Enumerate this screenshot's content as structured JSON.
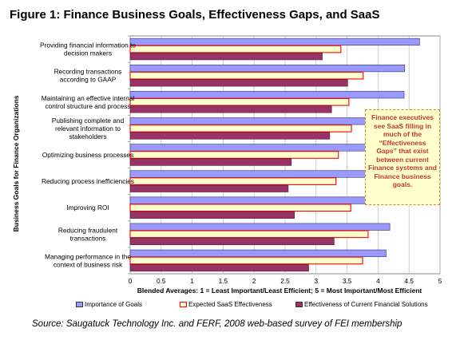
{
  "title": "Figure 1: Finance Business Goals, Effectiveness Gaps, and SaaS",
  "source": "Source: Saugatuck Technology Inc. and FERF, 2008 web-based survey of FEI membership",
  "callout": "Finance executives see SaaS filling in much of the “Effectiveness Gaps” that exist between current Finance systems and Finance business goals.",
  "colors": {
    "importance": "#9999ff",
    "saas": "#ffffcc",
    "saas_border": "#ff0000",
    "current": "#993366",
    "grid": "#bbbbbb"
  },
  "chart_data": {
    "type": "bar",
    "orientation": "horizontal",
    "xlabel": "Blended Averages: 1 = Least  Important/Least Efficient; 5 = Most Important/Most Efficient",
    "ylabel": "Business Goals  for Finance Organizations",
    "xlim": [
      0,
      5
    ],
    "xticks": [
      "0",
      "0.5",
      "1",
      "1.5",
      "2",
      "2.5",
      "3",
      "3.5",
      "4",
      "4.5",
      "5"
    ],
    "grid": true,
    "legend_position": "bottom",
    "categories": [
      [
        "Providing financial information to",
        "decision makers"
      ],
      [
        "Recording transactions",
        "according to GAAP"
      ],
      [
        "Maintaining an effective internal",
        "control structure and process"
      ],
      [
        "Publishing complete and",
        "relevant information to",
        "stakeholders"
      ],
      [
        "Optimizing business processes"
      ],
      [
        "Reducing process inefficiencies"
      ],
      [
        "Improving ROI"
      ],
      [
        "Reducing fraudulent",
        "transactions"
      ],
      [
        "Managing performance in the",
        "context of business risk"
      ]
    ],
    "series": [
      {
        "name": "Importance of Goals",
        "values": [
          4.67,
          4.43,
          4.42,
          4.4,
          4.5,
          4.35,
          4.1,
          4.19,
          4.13
        ]
      },
      {
        "name": "Expected SaaS Effectiveness",
        "values": [
          3.4,
          3.76,
          3.53,
          3.57,
          3.36,
          3.32,
          3.56,
          3.84,
          3.75
        ]
      },
      {
        "name": "Effectiveness of Current Financial Solutions",
        "values": [
          3.1,
          3.51,
          3.25,
          3.22,
          2.6,
          2.55,
          2.65,
          3.29,
          2.88
        ]
      }
    ]
  }
}
